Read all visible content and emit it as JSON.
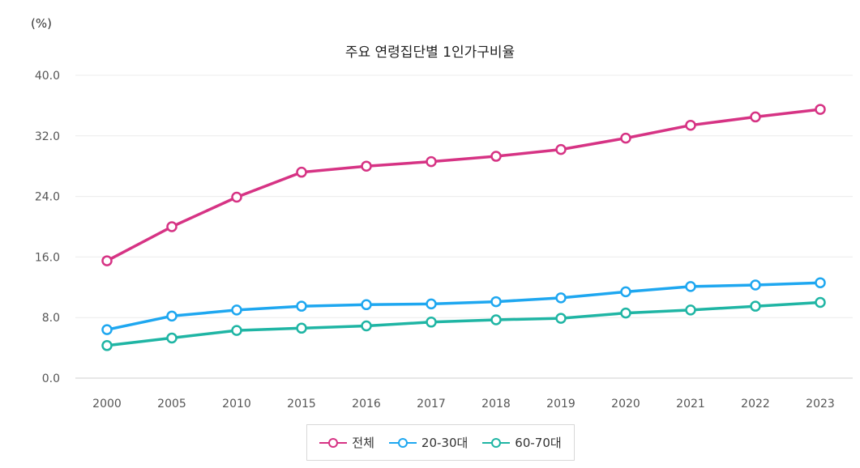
{
  "chart_data": {
    "type": "line",
    "title": "주요 연령집단별 1인가구비율",
    "unit_label": "(%)",
    "xlabel": "",
    "ylabel": "",
    "ylim": [
      0,
      40
    ],
    "y_ticks": [
      "0.0",
      "8.0",
      "16.0",
      "24.0",
      "32.0",
      "40.0"
    ],
    "categories": [
      "2000",
      "2005",
      "2010",
      "2015",
      "2016",
      "2017",
      "2018",
      "2019",
      "2020",
      "2021",
      "2022",
      "2023"
    ],
    "series": [
      {
        "name": "전체",
        "color": "#d63384",
        "values": [
          15.5,
          20.0,
          23.9,
          27.2,
          28.0,
          28.6,
          29.3,
          30.2,
          31.7,
          33.4,
          34.5,
          35.5
        ]
      },
      {
        "name": "20-30대",
        "color": "#1ea7f0",
        "values": [
          6.4,
          8.2,
          9.0,
          9.5,
          9.7,
          9.8,
          10.1,
          10.6,
          11.4,
          12.1,
          12.3,
          12.6
        ]
      },
      {
        "name": "60-70대",
        "color": "#1fb5a4",
        "values": [
          4.3,
          5.3,
          6.3,
          6.6,
          6.9,
          7.4,
          7.7,
          7.9,
          8.6,
          9.0,
          9.5,
          10.0
        ]
      }
    ],
    "grid": true,
    "legend_position": "bottom"
  }
}
